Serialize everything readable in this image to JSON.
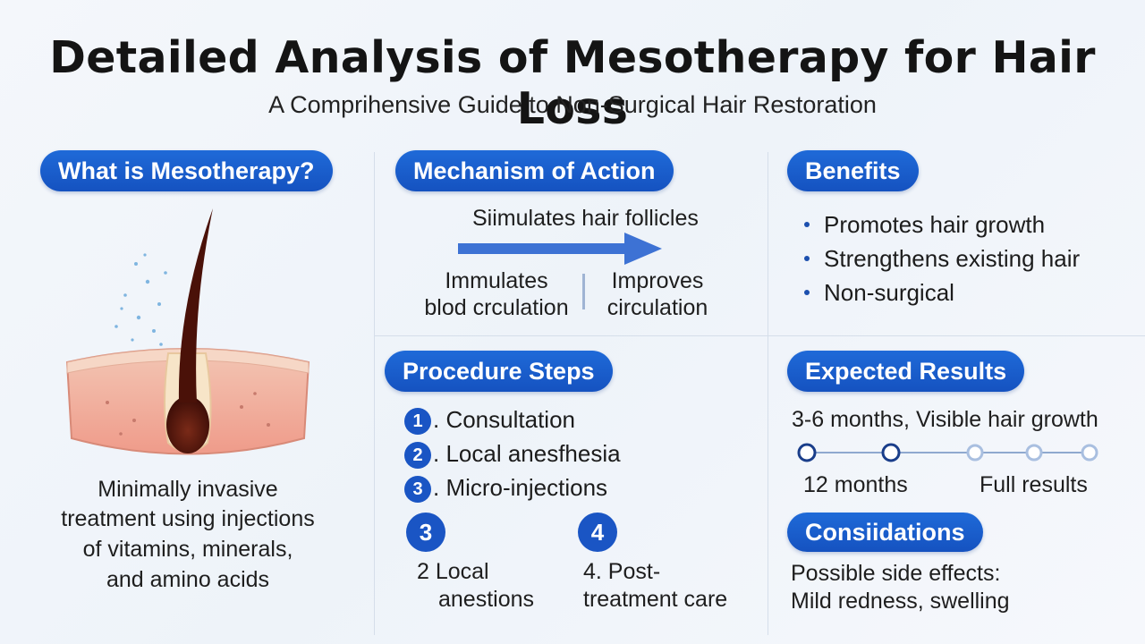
{
  "header": {
    "title": "Detailed Analysis of Mesotherapy for Hair Loss",
    "subtitle": "A Comprihensive Guide to Non-Surgical Hair Restoration"
  },
  "what_is": {
    "heading": "What is Mesotherapy?",
    "description_lines": [
      "Minimally invasive",
      "treatment using injections",
      "of vitamins, minerals,",
      "and amino acids"
    ]
  },
  "mechanism": {
    "heading": "Mechanism of Action",
    "arrow_label": "Siimulates hair follicles",
    "left_lines": [
      "Immulates",
      "blod crculation"
    ],
    "right_lines": [
      "Improves",
      "circulation"
    ]
  },
  "benefits": {
    "heading": "Benefits",
    "items": [
      "Promotes hair growth",
      "Strengthens existing hair",
      "Non-surgical"
    ]
  },
  "procedure": {
    "heading": "Procedure Steps",
    "steps": [
      {
        "num": "1",
        "label": ". Consultation"
      },
      {
        "num": "2",
        "label": ". Local anesfhesia"
      },
      {
        "num": "3",
        "label": ". Micro-injections"
      }
    ],
    "extra": [
      {
        "num": "3",
        "lines": [
          "2   Local",
          "anestions"
        ]
      },
      {
        "num": "4",
        "lines": [
          "4.   Post-",
          "treatment care"
        ]
      }
    ]
  },
  "results": {
    "heading": "Expected Results",
    "line": "3-6 months, Visible hair growth",
    "timeline_left": "12 months",
    "timeline_right": "Full results"
  },
  "considerations": {
    "heading": "Consiidations",
    "lines": [
      "Possible side effects:",
      "Mild redness, swelling"
    ]
  },
  "colors": {
    "accent": "#1a55c4",
    "arrow": "#3d72d4",
    "skin": "#f0a090",
    "hair": "#5a1a10"
  }
}
